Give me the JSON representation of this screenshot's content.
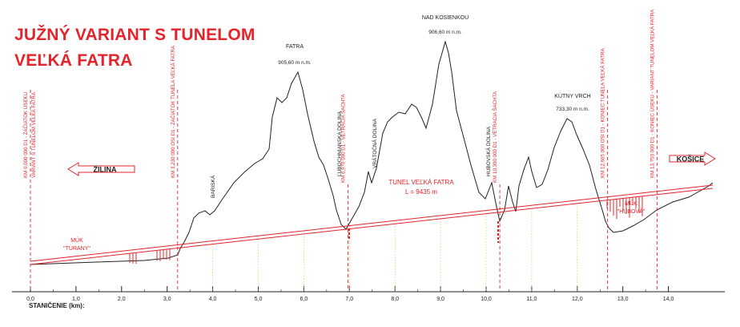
{
  "title": {
    "line1": "JUŽNÝ VARIANT  S TUNELOM",
    "line2": "VEĽKÁ FATRA"
  },
  "directions": {
    "left": "ŽILINA",
    "right": "KOŠICE"
  },
  "axis": {
    "label": "STANIČENIE (km):",
    "range_km": [
      0,
      15.0
    ],
    "ticks": [
      "0,0",
      "1,0",
      "2,0",
      "3,0",
      "4,0",
      "5,0",
      "6,0",
      "7,0",
      "8,0",
      "9,0",
      "10,0",
      "11,0",
      "12,0",
      "13,0",
      "14,0"
    ]
  },
  "peaks": [
    {
      "name": "FATRA",
      "elevation": "905,60 m n.m.",
      "km": 5.85
    },
    {
      "name": "NAD KOSIENKOU",
      "elevation": "906,60 m n.m.",
      "km": 9.05
    },
    {
      "name": "KÚTNY VRCH",
      "elevation": "733,30 m n.m.",
      "km": 11.85
    }
  ],
  "valleys": [
    {
      "name": "BARISKÁ",
      "km": 4.0
    },
    {
      "name": "ĽUBOCHNIANSKA DOLINA",
      "km": 6.85
    },
    {
      "name": "VRÁTOČNÁ DOLINA",
      "km": 7.5
    },
    {
      "name": "HUBOVSKÁ DOLINA",
      "km": 10.15
    }
  ],
  "stations": [
    {
      "label": "KM 0,000 000 D1 - ZAČIATOK ÚSEKU",
      "label2": "VARIANT S TUNELOM VEĽKÁ FATRA",
      "km": 0.0
    },
    {
      "label": "KM 3,230 000 OSI D1 - ZAČIATOK TUNELA VEĽKÁ FATRA",
      "km": 3.23
    },
    {
      "label": "KM 6,970 000 D1 - VETRACIA ŠACHTA",
      "km": 6.97
    },
    {
      "label": "KM 10,300 000 D1 - VETRACIA ŠACHTA",
      "km": 10.3
    },
    {
      "label": "KM 12,665 000 OSI D1 - KONIEC TUNELA VEĽKÁ FATRA",
      "km": 12.665
    },
    {
      "label": "KM 13,750 000 D1 - KONIEC ÚSEKU - VARIANT TUNELOM VEĽKÁ FATRA",
      "km": 13.75
    }
  ],
  "tunnel": {
    "name": "TUNEL VEĽKÁ FATRA",
    "length": "L = 9435 m"
  },
  "bridges": [
    {
      "name": "MÚK",
      "name2": "\"TURANY\"",
      "km": 1.0
    },
    {
      "name": "MÚK",
      "name2": "\"HUBOVÁ\"",
      "km": 13.05
    }
  ],
  "colors": {
    "accent": "#e3242b",
    "terrain": "#222222",
    "grid": "#e8b23c"
  }
}
